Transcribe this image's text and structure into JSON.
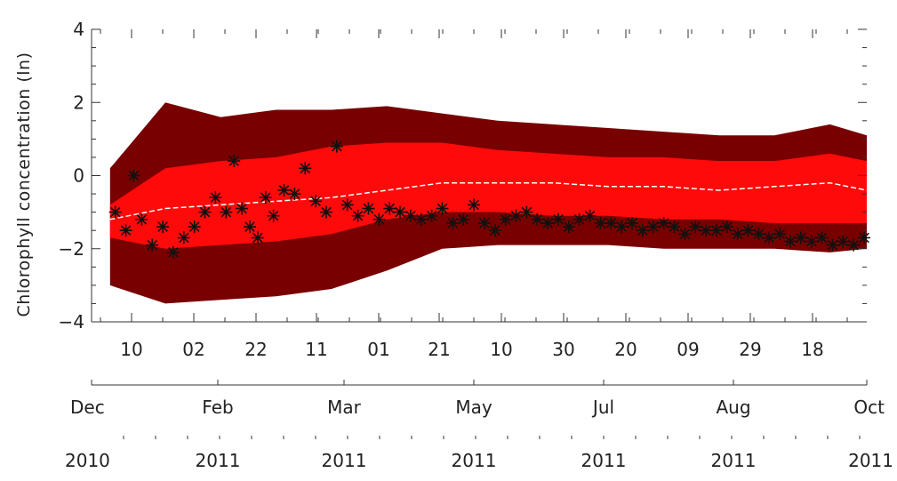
{
  "chart_data": {
    "type": "area",
    "ylabel": "Chlorophyll concentration (ln)",
    "ylim": [
      -4,
      4
    ],
    "y_ticks": [
      "4",
      "2",
      "0",
      "−2",
      "−4"
    ],
    "y_tick_values": [
      4,
      2,
      0,
      -2,
      -4
    ],
    "x_axis_day_ticks": [
      "10",
      "02",
      "22",
      "11",
      "01",
      "21",
      "10",
      "30",
      "20",
      "09",
      "29",
      "18"
    ],
    "x_axis_month_ticks": [
      "Dec",
      "Feb",
      "Mar",
      "May",
      "Jul",
      "Aug",
      "Oct"
    ],
    "x_axis_year_ticks": [
      "2010",
      "2011",
      "2011",
      "2011",
      "2011",
      "2011",
      "2011"
    ],
    "x": [
      "2010-12-20",
      "2011-01-10",
      "2011-01-31",
      "2011-02-21",
      "2011-03-14",
      "2011-04-04",
      "2011-04-25",
      "2011-05-16",
      "2011-06-06",
      "2011-06-27",
      "2011-07-18",
      "2011-08-08",
      "2011-08-29",
      "2011-09-19",
      "2011-10-03"
    ],
    "series": [
      {
        "role": "outer_band_upper",
        "color": "#780000",
        "values": [
          0.2,
          2.0,
          1.6,
          1.8,
          1.8,
          1.9,
          1.7,
          1.5,
          1.4,
          1.3,
          1.2,
          1.1,
          1.1,
          1.4,
          1.1
        ]
      },
      {
        "role": "inner_band_upper",
        "color": "#ff0a0a",
        "values": [
          -0.8,
          0.2,
          0.4,
          0.5,
          0.8,
          0.9,
          0.9,
          0.7,
          0.6,
          0.5,
          0.5,
          0.4,
          0.4,
          0.6,
          0.4
        ]
      },
      {
        "role": "median",
        "color": "#ffffff",
        "values": [
          -1.2,
          -0.9,
          -0.8,
          -0.7,
          -0.6,
          -0.4,
          -0.2,
          -0.2,
          -0.2,
          -0.3,
          -0.3,
          -0.4,
          -0.3,
          -0.2,
          -0.4
        ]
      },
      {
        "role": "inner_band_lower",
        "color": "#ff0a0a",
        "values": [
          -1.7,
          -2.0,
          -1.9,
          -1.8,
          -1.6,
          -1.2,
          -1.0,
          -1.0,
          -1.1,
          -1.1,
          -1.2,
          -1.2,
          -1.3,
          -1.3,
          -1.3
        ]
      },
      {
        "role": "outer_band_lower",
        "color": "#780000",
        "values": [
          -3.0,
          -3.5,
          -3.4,
          -3.3,
          -3.1,
          -2.6,
          -2.0,
          -1.9,
          -1.9,
          -1.9,
          -2.0,
          -2.0,
          -2.0,
          -2.1,
          -2.0
        ]
      }
    ],
    "observations": {
      "marker": "asterisk",
      "color": "#111111",
      "x": [
        "2010-12-22",
        "2010-12-26",
        "2010-12-29",
        "2011-01-01",
        "2011-01-05",
        "2011-01-09",
        "2011-01-13",
        "2011-01-17",
        "2011-01-21",
        "2011-01-25",
        "2011-01-29",
        "2011-02-02",
        "2011-02-05",
        "2011-02-08",
        "2011-02-11",
        "2011-02-14",
        "2011-02-17",
        "2011-02-20",
        "2011-02-24",
        "2011-02-28",
        "2011-03-04",
        "2011-03-08",
        "2011-03-12",
        "2011-03-16",
        "2011-03-20",
        "2011-03-24",
        "2011-03-28",
        "2011-04-01",
        "2011-04-05",
        "2011-04-09",
        "2011-04-13",
        "2011-04-17",
        "2011-04-21",
        "2011-04-25",
        "2011-04-29",
        "2011-05-03",
        "2011-05-07",
        "2011-05-11",
        "2011-05-15",
        "2011-05-19",
        "2011-05-23",
        "2011-05-27",
        "2011-05-31",
        "2011-06-04",
        "2011-06-08",
        "2011-06-12",
        "2011-06-16",
        "2011-06-20",
        "2011-06-24",
        "2011-06-28",
        "2011-07-02",
        "2011-07-06",
        "2011-07-10",
        "2011-07-14",
        "2011-07-18",
        "2011-07-22",
        "2011-07-26",
        "2011-07-30",
        "2011-08-03",
        "2011-08-07",
        "2011-08-11",
        "2011-08-15",
        "2011-08-19",
        "2011-08-23",
        "2011-08-27",
        "2011-08-31",
        "2011-09-04",
        "2011-09-08",
        "2011-09-12",
        "2011-09-16",
        "2011-09-20",
        "2011-09-24",
        "2011-09-28",
        "2011-10-02"
      ],
      "y": [
        -1.0,
        -1.5,
        0.0,
        -1.2,
        -1.9,
        -1.4,
        -2.1,
        -1.7,
        -1.4,
        -1.0,
        -0.6,
        -1.0,
        0.4,
        -0.9,
        -1.4,
        -1.7,
        -0.6,
        -1.1,
        -0.4,
        -0.5,
        0.2,
        -0.7,
        -1.0,
        0.8,
        -0.8,
        -1.1,
        -0.9,
        -1.2,
        -0.9,
        -1.0,
        -1.1,
        -1.2,
        -1.1,
        -0.9,
        -1.3,
        -1.2,
        -0.8,
        -1.3,
        -1.5,
        -1.2,
        -1.1,
        -1.0,
        -1.2,
        -1.3,
        -1.2,
        -1.4,
        -1.2,
        -1.1,
        -1.3,
        -1.3,
        -1.4,
        -1.3,
        -1.5,
        -1.4,
        -1.3,
        -1.4,
        -1.6,
        -1.4,
        -1.5,
        -1.5,
        -1.4,
        -1.6,
        -1.5,
        -1.6,
        -1.7,
        -1.6,
        -1.8,
        -1.7,
        -1.8,
        -1.7,
        -1.9,
        -1.8,
        -1.9,
        -1.7
      ]
    }
  }
}
